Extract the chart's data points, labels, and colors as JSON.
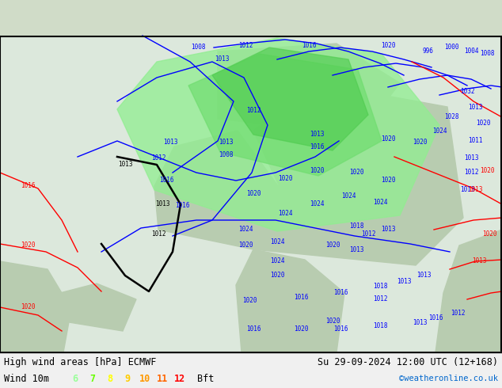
{
  "title_left": "High wind areas [hPa] ECMWF",
  "title_right": "Su 29-09-2024 12:00 UTC (12+168)",
  "subtitle_left": "Wind 10m",
  "legend_values": [
    "6",
    "7",
    "8",
    "9",
    "10",
    "11",
    "12"
  ],
  "legend_colors": [
    "#99ff99",
    "#66ff00",
    "#ffff00",
    "#ffcc00",
    "#ff9900",
    "#ff6600",
    "#ff0000"
  ],
  "legend_suffix": "Bft",
  "copyright": "©weatheronline.co.uk",
  "copyright_color": "#0066cc",
  "figsize": [
    6.34,
    4.9
  ],
  "dpi": 100
}
